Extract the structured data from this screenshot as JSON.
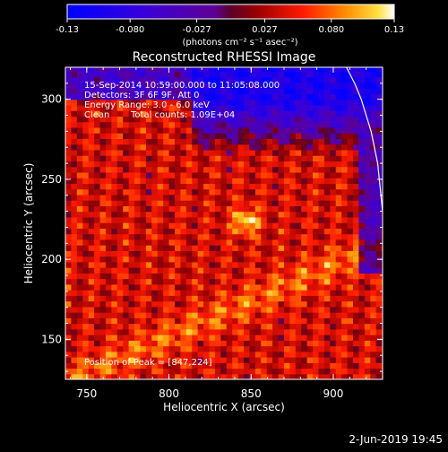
{
  "colorbar": {
    "tick_labels": [
      "-0.13",
      "-0.080",
      "-0.027",
      "0.027",
      "0.080",
      "0.13"
    ],
    "tick_values": [
      -0.13,
      -0.08,
      -0.027,
      0.027,
      0.08,
      0.13
    ],
    "range": [
      -0.13,
      0.13
    ],
    "units_label": "(photons cm⁻² s⁻¹ asec⁻²)"
  },
  "chart_data": {
    "type": "heatmap",
    "title": "Reconstructed RHESSI Image",
    "xlabel": "Heliocentric X (arcsec)",
    "ylabel": "Heliocentric Y (arcsec)",
    "xlim": [
      737,
      930
    ],
    "ylim": [
      125,
      320
    ],
    "x_ticks": [
      750,
      800,
      850,
      900
    ],
    "y_ticks": [
      150,
      200,
      250,
      300
    ],
    "x_tick_labels": [
      "750",
      "800",
      "850",
      "900"
    ],
    "y_tick_labels": [
      "150",
      "200",
      "250",
      "300"
    ],
    "annotations": [
      "15-Sep-2014 10:59:00.000 to 11:05:08.000",
      "Detectors: 3F 6F 9F, Att 0",
      "Energy Range: 3.0 - 6.0 keV",
      "Clean",
      "Total counts: 1.09E+04"
    ],
    "peak_label": "Position of Peak = [847,224]",
    "peak_position": [
      847,
      224
    ],
    "value_range": [
      -0.13,
      0.13
    ],
    "limb_curve": [
      [
        908,
        320
      ],
      [
        913,
        310
      ],
      [
        917,
        300
      ],
      [
        920,
        290
      ],
      [
        923,
        280
      ],
      [
        925,
        270
      ],
      [
        927,
        260
      ],
      [
        928,
        250
      ],
      [
        929,
        240
      ],
      [
        930,
        230
      ]
    ]
  },
  "footer": {
    "date_label": "2-Jun-2019 19:45"
  }
}
